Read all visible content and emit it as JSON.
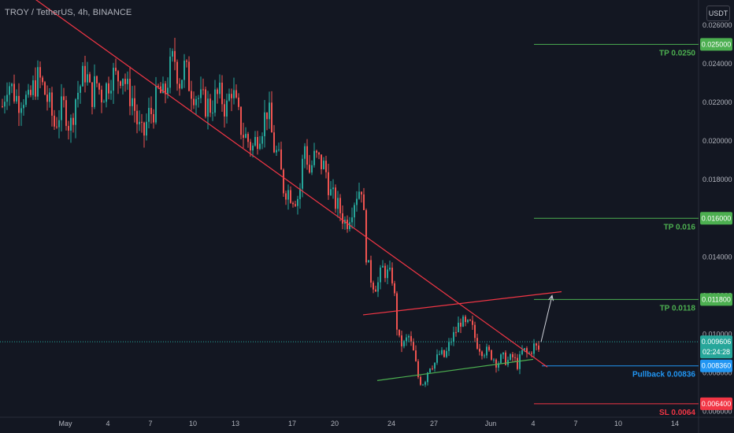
{
  "header": {
    "symbol": "TROY / TetherUS, 4h, BINANCE"
  },
  "currency": {
    "label": "USDT"
  },
  "colors": {
    "up": "#26a69a",
    "down": "#ef5350",
    "bg": "#131722",
    "green_line": "#4caf50",
    "red_line": "#f23645",
    "blue_line": "#2196f3"
  },
  "chart_data": {
    "type": "candlestick",
    "title": "TROY / TetherUS, 4h, BINANCE",
    "ylim": [
      0.0057,
      0.0273
    ],
    "y_ticks": [
      "0.026000",
      "0.024000",
      "0.022000",
      "0.020000",
      "0.018000",
      "0.016000",
      "0.014000",
      "0.012000",
      "0.010000",
      "0.008000",
      "0.006000"
    ],
    "x_ticks": [
      "May",
      "4",
      "7",
      "10",
      "13",
      "17",
      "20",
      "24",
      "27",
      "Jun",
      "4",
      "7",
      "10",
      "14"
    ],
    "x_tick_index": [
      0,
      3,
      6,
      9,
      12,
      16,
      19,
      23,
      26,
      30,
      33,
      36,
      39,
      43
    ],
    "grid": false,
    "close_series": [
      0.0218,
      0.0232,
      0.0226,
      0.0221,
      0.0224,
      0.0219,
      0.0228,
      0.0233,
      0.0226,
      0.0219,
      0.0208,
      0.0215,
      0.0218,
      0.0206,
      0.0222,
      0.0229,
      0.0237,
      0.0222,
      0.0231,
      0.0224,
      0.0228,
      0.0235,
      0.0232,
      0.0237,
      0.0226,
      0.0222,
      0.0208,
      0.0201,
      0.0213,
      0.0216,
      0.0226,
      0.0222,
      0.0235,
      0.0244,
      0.0231,
      0.0238,
      0.0229,
      0.0225,
      0.0221,
      0.0219,
      0.0218,
      0.0223,
      0.0223,
      0.0216,
      0.0228,
      0.0216,
      0.0205,
      0.0201,
      0.0196,
      0.0203,
      0.0209,
      0.0218,
      0.0198,
      0.0191,
      0.0176,
      0.0174,
      0.0171,
      0.0171,
      0.0199,
      0.0184,
      0.0192,
      0.0189,
      0.0186,
      0.0173,
      0.0168,
      0.0163,
      0.0157,
      0.0165,
      0.0173,
      0.0177,
      0.0137,
      0.0127,
      0.0125,
      0.0134,
      0.0131,
      0.0129,
      0.0097,
      0.0094,
      0.0099,
      0.009,
      0.0076,
      0.0075,
      0.0084,
      0.0085,
      0.009,
      0.0088,
      0.0096,
      0.0101,
      0.0107,
      0.0104,
      0.0105,
      0.0096,
      0.0092,
      0.0091,
      0.0089,
      0.0085,
      0.0088,
      0.0086,
      0.0088,
      0.0084,
      0.0092,
      0.0089,
      0.0094,
      0.0092
    ],
    "trendlines": [
      {
        "name": "Descending resistance",
        "from": [
          "Apr 28",
          0.0278
        ],
        "to": [
          "Jun 4",
          0.0083
        ],
        "color": "red"
      },
      {
        "name": "Channel top",
        "from": [
          "May 22",
          0.011
        ],
        "to": [
          "Jun 5",
          0.0122
        ],
        "color": "red"
      },
      {
        "name": "Channel bottom",
        "from": [
          "May 23",
          0.0076
        ],
        "to": [
          "Jun 3",
          0.0087
        ],
        "color": "green"
      }
    ],
    "arrow": {
      "from": [
        "Jun 3",
        0.0096
      ],
      "to": [
        "Jun 4",
        0.012
      ]
    },
    "levels": [
      {
        "label": "TP 0.0250",
        "price": 0.025,
        "price_label": "0.025000",
        "color": "green"
      },
      {
        "label": "TP 0.016",
        "price": 0.016,
        "price_label": "0.016000",
        "color": "green"
      },
      {
        "label": "TP 0.0118",
        "price": 0.0118,
        "price_label": "0.011800",
        "color": "green"
      },
      {
        "label": "Pullback 0.00836",
        "price": 0.00836,
        "price_label": "0.008360",
        "color": "blue"
      },
      {
        "label": "SL 0.0064",
        "price": 0.0064,
        "price_label": "0.006400",
        "color": "red"
      }
    ],
    "current_price": {
      "value": 0.009606,
      "label": "0.009606",
      "countdown": "02:24:28"
    }
  }
}
